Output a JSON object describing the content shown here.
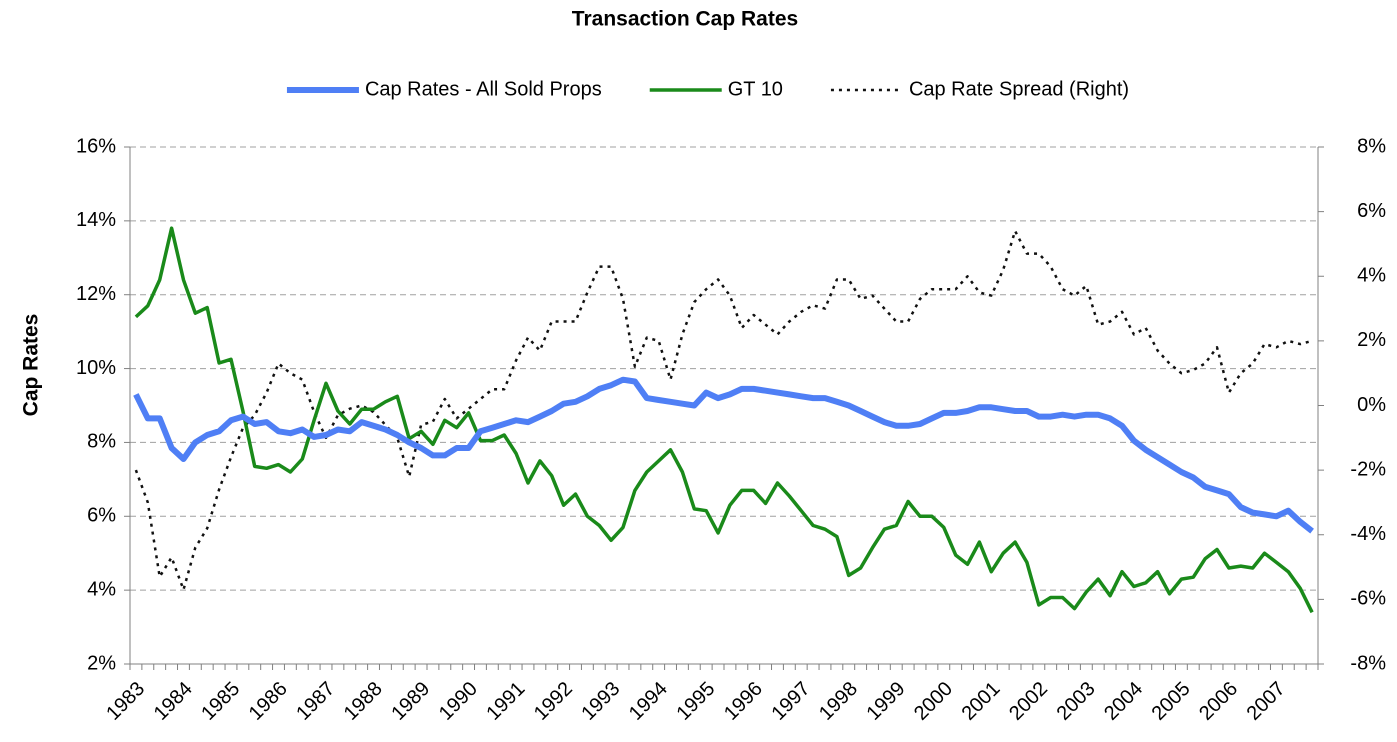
{
  "chart_data": {
    "type": "line",
    "title": "Transaction Cap Rates",
    "ylabel": "Cap Rates",
    "legend": "top",
    "grid": true,
    "categories": [
      "1983",
      null,
      null,
      null,
      "1984",
      null,
      null,
      null,
      "1985",
      null,
      null,
      null,
      "1986",
      null,
      null,
      null,
      "1987",
      null,
      null,
      null,
      "1988",
      null,
      null,
      null,
      "1989",
      null,
      null,
      null,
      "1990",
      null,
      null,
      null,
      "1991",
      null,
      null,
      null,
      "1992",
      null,
      null,
      null,
      "1993",
      null,
      null,
      null,
      "1994",
      null,
      null,
      null,
      "1995",
      null,
      null,
      null,
      "1996",
      null,
      null,
      null,
      "1997",
      null,
      null,
      null,
      "1998",
      null,
      null,
      null,
      "1999",
      null,
      null,
      null,
      "2000",
      null,
      null,
      null,
      "2001",
      null,
      null,
      null,
      "2002",
      null,
      null,
      null,
      "2003",
      null,
      null,
      null,
      "2004",
      null,
      null,
      null,
      "2005",
      null,
      null,
      null,
      "2006",
      null,
      null,
      null,
      "2007",
      null,
      null,
      null
    ],
    "ylim": [
      2,
      16
    ],
    "yticks": [
      {
        "value": 2,
        "label": "2%"
      },
      {
        "value": 4,
        "label": "4%"
      },
      {
        "value": 6,
        "label": "6%"
      },
      {
        "value": 8,
        "label": "8%"
      },
      {
        "value": 10,
        "label": "10%"
      },
      {
        "value": 12,
        "label": "12%"
      },
      {
        "value": 14,
        "label": "14%"
      },
      {
        "value": 16,
        "label": "16%"
      }
    ],
    "y2lim": [
      -8,
      8
    ],
    "y2ticks": [
      {
        "value": -8,
        "label": "-8%"
      },
      {
        "value": -6,
        "label": "-6%"
      },
      {
        "value": -4,
        "label": "-4%"
      },
      {
        "value": -2,
        "label": "-2%"
      },
      {
        "value": 0,
        "label": "0%"
      },
      {
        "value": 2,
        "label": "2%"
      },
      {
        "value": 4,
        "label": "4%"
      },
      {
        "value": 6,
        "label": "6%"
      },
      {
        "value": 8,
        "label": "8%"
      }
    ],
    "series": [
      {
        "name": "Cap Rates - All Sold Props",
        "color": "#4f7ff5",
        "style": "solid",
        "values": [
          9.3,
          8.65,
          8.65,
          7.85,
          7.55,
          8.0,
          8.2,
          8.3,
          8.6,
          8.7,
          8.5,
          8.55,
          8.3,
          8.25,
          8.35,
          8.15,
          8.2,
          8.35,
          8.3,
          8.55,
          8.45,
          8.35,
          8.2,
          8.0,
          7.85,
          7.65,
          7.65,
          7.85,
          7.85,
          8.3,
          8.4,
          8.5,
          8.6,
          8.55,
          8.7,
          8.85,
          9.05,
          9.1,
          9.25,
          9.45,
          9.55,
          9.7,
          9.65,
          9.2,
          9.15,
          9.1,
          9.05,
          9.0,
          9.35,
          9.2,
          9.3,
          9.45,
          9.45,
          9.4,
          9.35,
          9.3,
          9.25,
          9.2,
          9.2,
          9.1,
          9.0,
          8.85,
          8.7,
          8.55,
          8.45,
          8.45,
          8.5,
          8.65,
          8.8,
          8.8,
          8.85,
          8.95,
          8.95,
          8.9,
          8.85,
          8.85,
          8.7,
          8.7,
          8.75,
          8.7,
          8.75,
          8.75,
          8.65,
          8.45,
          8.05,
          7.8,
          7.6,
          7.4,
          7.2,
          7.05,
          6.8,
          6.7,
          6.6,
          6.25,
          6.1,
          6.05,
          6.0,
          6.15,
          5.85,
          5.6
        ]
      },
      {
        "name": "GT 10",
        "color": "#1a8a1a",
        "style": "solid",
        "values": [
          11.4,
          11.7,
          12.4,
          13.8,
          12.4,
          11.5,
          11.65,
          10.15,
          10.25,
          8.85,
          7.35,
          7.3,
          7.4,
          7.2,
          7.55,
          8.6,
          9.6,
          8.85,
          8.5,
          8.9,
          8.9,
          9.1,
          9.25,
          8.1,
          8.3,
          7.95,
          8.6,
          8.4,
          8.8,
          8.05,
          8.05,
          8.2,
          7.7,
          6.9,
          7.5,
          7.1,
          6.3,
          6.6,
          6.0,
          5.75,
          5.35,
          5.7,
          6.7,
          7.2,
          7.5,
          7.8,
          7.2,
          6.2,
          6.15,
          5.55,
          6.3,
          6.7,
          6.7,
          6.35,
          6.9,
          6.55,
          6.15,
          5.75,
          5.65,
          5.45,
          4.4,
          4.6,
          5.15,
          5.65,
          5.75,
          6.4,
          6.0,
          6.0,
          5.7,
          4.95,
          4.7,
          5.3,
          4.5,
          5.0,
          5.3,
          4.75,
          3.6,
          3.8,
          3.8,
          3.5,
          3.95,
          4.3,
          3.85,
          4.5,
          4.1,
          4.2,
          4.5,
          3.9,
          4.3,
          4.35,
          4.85,
          5.1,
          4.6,
          4.65,
          4.6,
          5.0,
          4.75,
          4.5,
          4.05,
          3.4
        ]
      },
      {
        "name": "Cap Rate Spread (Right)",
        "color": "#111111",
        "style": "dotted",
        "axis": "y2",
        "values": [
          -2.0,
          -3.0,
          -5.3,
          -4.7,
          -5.7,
          -4.4,
          -3.8,
          -2.6,
          -1.6,
          -0.7,
          -0.3,
          0.4,
          1.3,
          1.0,
          0.8,
          -0.2,
          -1.0,
          -0.3,
          -0.1,
          0.0,
          -0.2,
          -0.6,
          -1.0,
          -2.2,
          -0.6,
          -0.5,
          0.2,
          -0.4,
          -0.1,
          0.2,
          0.5,
          0.5,
          1.4,
          2.1,
          1.7,
          2.6,
          2.6,
          2.6,
          3.5,
          4.3,
          4.3,
          3.3,
          1.2,
          2.1,
          2.0,
          0.8,
          2.2,
          3.2,
          3.6,
          3.9,
          3.4,
          2.4,
          2.8,
          2.5,
          2.2,
          2.6,
          2.9,
          3.1,
          3.0,
          3.9,
          3.9,
          3.3,
          3.4,
          3.0,
          2.6,
          2.6,
          3.3,
          3.6,
          3.6,
          3.6,
          4.0,
          3.5,
          3.4,
          4.2,
          5.4,
          4.7,
          4.7,
          4.3,
          3.6,
          3.4,
          3.7,
          2.5,
          2.6,
          2.9,
          2.2,
          2.4,
          1.7,
          1.3,
          1.0,
          1.1,
          1.3,
          1.8,
          0.4,
          1.0,
          1.3,
          1.9,
          1.8,
          2.0,
          1.9,
          2.0
        ]
      }
    ]
  }
}
